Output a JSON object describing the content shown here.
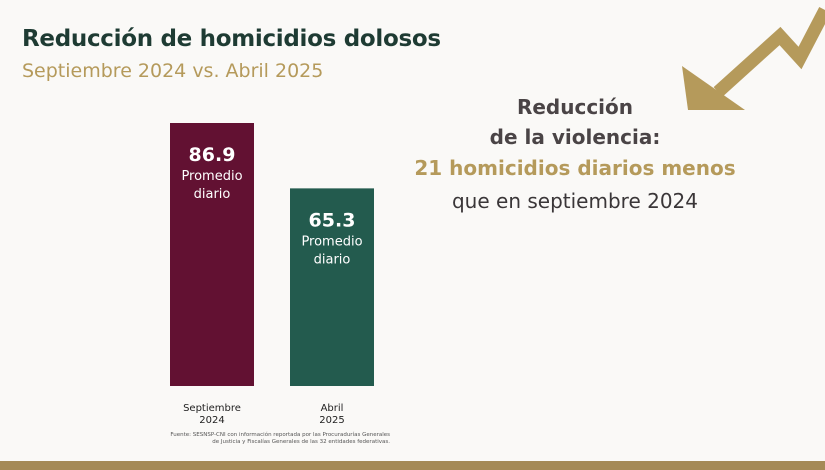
{
  "header": {
    "title": "Reducción de homicidios dolosos",
    "subtitle": "Septiembre 2024 vs. Abril 2025"
  },
  "message": {
    "line1": "Reducción",
    "line2": "de la violencia:",
    "line3": "21 homicidios diarios menos",
    "line4": "que en septiembre 2024"
  },
  "source": "Fuente: SESNSP-CNI con información reportada por las Procuradurías Generales de Justicia y Fiscalías Generales de las 32 entidades federativas.",
  "colors": {
    "bar_september": "#621132",
    "bar_april": "#235b4e",
    "accent_gold": "#b59a5b",
    "title_green": "#1e3b33"
  },
  "icons": {
    "decoration": "trend-down-arrow-icon"
  },
  "chart_data": {
    "type": "bar",
    "categories": [
      [
        "Septiembre",
        "2024"
      ],
      [
        "Abril",
        "2025"
      ]
    ],
    "values": [
      86.9,
      65.3
    ],
    "value_labels": [
      "86.9",
      "65.3"
    ],
    "value_caption": [
      "Promedio",
      "diario"
    ],
    "title": "",
    "xlabel": "",
    "ylabel": "",
    "ylim": [
      0,
      86.9
    ],
    "grid": false
  }
}
